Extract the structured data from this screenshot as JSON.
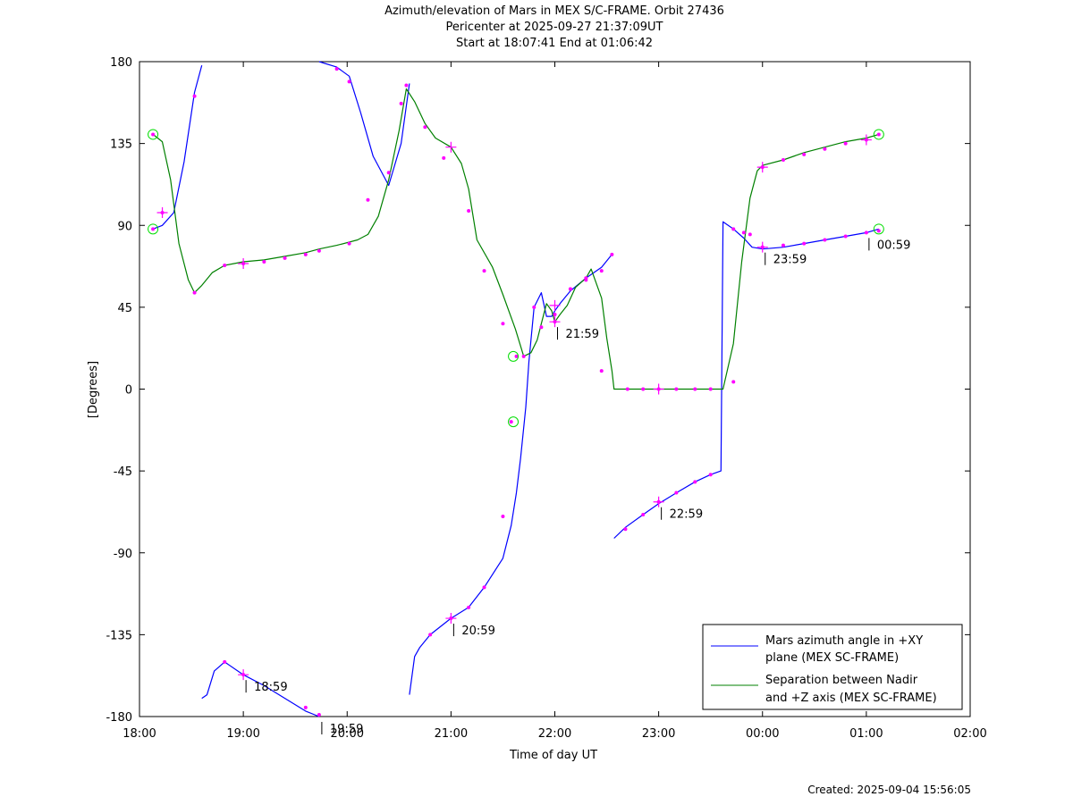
{
  "title_lines": [
    "Azimuth/elevation of Mars in MEX S/C-FRAME.  Orbit 27436",
    "Pericenter at 2025-09-27 21:37:09UT",
    "Start at 18:07:41 End at 01:06:42"
  ],
  "footer": "Created: 2025-09-04 15:56:05",
  "colors": {
    "azimuth": "#0000ff",
    "separation": "#008000",
    "marker": "#ff00ff",
    "circle": "#00dd00"
  },
  "chart_data": {
    "type": "line",
    "xlabel": "Time of day UT",
    "ylabel": "[Degrees]",
    "x_unit": "hours since 18:00 UT",
    "xlim": [
      0,
      8
    ],
    "ylim": [
      -180,
      180
    ],
    "xticks": [
      0,
      1,
      2,
      3,
      4,
      5,
      6,
      7,
      8
    ],
    "xtick_labels": [
      "18:00",
      "19:00",
      "20:00",
      "21:00",
      "22:00",
      "23:00",
      "00:00",
      "01:00",
      "02:00"
    ],
    "yticks": [
      180,
      135,
      90,
      45,
      0,
      -45,
      -90,
      -135,
      -180
    ],
    "grid": false,
    "legend_position": "bottom-right",
    "series": [
      {
        "name": "Mars azimuth angle in +XY plane (MEX SC-FRAME)",
        "segments": [
          [
            [
              0.13,
              88
            ],
            [
              0.22,
              90
            ],
            [
              0.33,
              97
            ],
            [
              0.43,
              125
            ],
            [
              0.53,
              163
            ],
            [
              0.6,
              178
            ]
          ],
          [
            [
              0.6,
              -170
            ],
            [
              0.65,
              -168
            ],
            [
              0.72,
              -155
            ],
            [
              0.82,
              -150
            ],
            [
              1.0,
              -157
            ],
            [
              1.2,
              -163
            ],
            [
              1.4,
              -170
            ],
            [
              1.6,
              -177
            ],
            [
              1.73,
              -180
            ]
          ],
          [
            [
              1.73,
              180
            ],
            [
              1.9,
              177
            ],
            [
              2.02,
              172
            ],
            [
              2.13,
              152
            ],
            [
              2.25,
              128
            ],
            [
              2.4,
              112
            ],
            [
              2.52,
              135
            ],
            [
              2.6,
              168
            ]
          ],
          [
            [
              2.6,
              -168
            ],
            [
              2.65,
              -147
            ],
            [
              2.7,
              -142
            ],
            [
              2.8,
              -135
            ],
            [
              3.0,
              -126
            ],
            [
              3.17,
              -120
            ],
            [
              3.32,
              -109
            ],
            [
              3.5,
              -93
            ],
            [
              3.58,
              -75
            ],
            [
              3.63,
              -57
            ],
            [
              3.67,
              -38
            ],
            [
              3.72,
              -10
            ],
            [
              3.75,
              15
            ],
            [
              3.8,
              45
            ],
            [
              3.87,
              53
            ],
            [
              3.92,
              40
            ],
            [
              3.97,
              40
            ],
            [
              4.0,
              43
            ],
            [
              4.05,
              47
            ],
            [
              4.15,
              54
            ],
            [
              4.3,
              61
            ],
            [
              4.45,
              67
            ],
            [
              4.55,
              74
            ]
          ],
          [
            [
              4.57,
              -82
            ],
            [
              4.68,
              -76
            ],
            [
              4.85,
              -69
            ],
            [
              5.0,
              -63
            ],
            [
              5.17,
              -57
            ],
            [
              5.35,
              -51
            ],
            [
              5.5,
              -47
            ],
            [
              5.6,
              -45
            ],
            [
              5.62,
              92
            ],
            [
              5.72,
              88
            ],
            [
              5.82,
              83
            ],
            [
              5.9,
              78
            ],
            [
              6.0,
              77
            ],
            [
              6.2,
              78
            ],
            [
              6.4,
              80
            ],
            [
              6.6,
              82
            ],
            [
              6.8,
              84
            ],
            [
              7.0,
              86
            ],
            [
              7.12,
              88
            ]
          ]
        ],
        "markers": [
          [
            0.13,
            88
          ],
          [
            0.22,
            97
          ],
          [
            0.53,
            161
          ],
          [
            0.82,
            -150
          ],
          [
            1.0,
            -157
          ],
          [
            1.6,
            -175
          ],
          [
            1.73,
            -179
          ],
          [
            1.9,
            176
          ],
          [
            2.02,
            169
          ],
          [
            2.4,
            119
          ],
          [
            2.52,
            157
          ],
          [
            2.8,
            -135
          ],
          [
            3.0,
            -126
          ],
          [
            3.17,
            -120
          ],
          [
            3.32,
            -109
          ],
          [
            3.5,
            -70
          ],
          [
            3.58,
            -18
          ],
          [
            3.63,
            18
          ],
          [
            3.8,
            45
          ],
          [
            3.87,
            34
          ],
          [
            4.0,
            37
          ],
          [
            4.15,
            55
          ],
          [
            4.3,
            61
          ],
          [
            4.45,
            65
          ],
          [
            4.55,
            74
          ],
          [
            4.68,
            -77
          ],
          [
            4.85,
            -69
          ],
          [
            5.0,
            -62
          ],
          [
            5.17,
            -57
          ],
          [
            5.35,
            -51
          ],
          [
            5.5,
            -47
          ],
          [
            5.72,
            88
          ],
          [
            5.82,
            86
          ],
          [
            6.0,
            78
          ],
          [
            6.2,
            79
          ],
          [
            6.4,
            80
          ],
          [
            6.6,
            82
          ],
          [
            6.8,
            84
          ],
          [
            7.0,
            86
          ],
          [
            7.12,
            87
          ]
        ]
      },
      {
        "name": "Separation between Nadir and +Z axis (MEX SC-FRAME)",
        "segments": [
          [
            [
              0.13,
              140
            ],
            [
              0.22,
              136
            ],
            [
              0.3,
              115
            ],
            [
              0.38,
              80
            ],
            [
              0.47,
              60
            ],
            [
              0.53,
              53
            ],
            [
              0.6,
              57
            ],
            [
              0.7,
              64
            ],
            [
              0.82,
              68
            ],
            [
              1.0,
              70
            ],
            [
              1.2,
              71
            ],
            [
              1.4,
              73
            ],
            [
              1.6,
              75
            ],
            [
              1.73,
              77
            ],
            [
              1.9,
              79
            ],
            [
              2.1,
              82
            ],
            [
              2.2,
              85
            ],
            [
              2.3,
              95
            ],
            [
              2.4,
              115
            ],
            [
              2.5,
              142
            ],
            [
              2.57,
              165
            ],
            [
              2.65,
              158
            ],
            [
              2.75,
              146
            ],
            [
              2.85,
              138
            ],
            [
              3.0,
              133
            ],
            [
              3.1,
              124
            ],
            [
              3.17,
              110
            ],
            [
              3.25,
              82
            ],
            [
              3.4,
              67
            ],
            [
              3.5,
              52
            ],
            [
              3.62,
              33
            ],
            [
              3.7,
              18
            ],
            [
              3.77,
              20
            ],
            [
              3.83,
              27
            ],
            [
              3.87,
              36
            ],
            [
              3.92,
              47
            ],
            [
              3.97,
              43
            ],
            [
              4.0,
              37
            ],
            [
              4.05,
              41
            ],
            [
              4.12,
              46
            ],
            [
              4.2,
              56
            ],
            [
              4.3,
              61
            ],
            [
              4.35,
              66
            ],
            [
              4.45,
              50
            ],
            [
              4.5,
              28
            ],
            [
              4.55,
              10
            ],
            [
              4.57,
              0
            ],
            [
              4.7,
              0
            ],
            [
              5.0,
              0
            ],
            [
              5.3,
              0
            ],
            [
              5.5,
              0
            ],
            [
              5.62,
              0
            ],
            [
              5.72,
              25
            ],
            [
              5.8,
              70
            ],
            [
              5.88,
              105
            ],
            [
              5.95,
              120
            ],
            [
              6.0,
              123
            ],
            [
              6.2,
              126
            ],
            [
              6.4,
              130
            ],
            [
              6.6,
              133
            ],
            [
              6.8,
              136
            ],
            [
              7.0,
              138
            ],
            [
              7.12,
              140
            ]
          ]
        ],
        "markers": [
          [
            0.13,
            140
          ],
          [
            0.53,
            53
          ],
          [
            0.82,
            68
          ],
          [
            1.0,
            69
          ],
          [
            1.2,
            70
          ],
          [
            1.4,
            72
          ],
          [
            1.6,
            74
          ],
          [
            1.73,
            76
          ],
          [
            2.02,
            80
          ],
          [
            2.2,
            104
          ],
          [
            2.57,
            167
          ],
          [
            2.75,
            144
          ],
          [
            2.93,
            127
          ],
          [
            3.17,
            98
          ],
          [
            3.32,
            65
          ],
          [
            3.5,
            36
          ],
          [
            3.7,
            18
          ],
          [
            4.0,
            41
          ],
          [
            4.15,
            55
          ],
          [
            4.3,
            60
          ],
          [
            4.45,
            10
          ],
          [
            4.7,
            0
          ],
          [
            4.85,
            0
          ],
          [
            5.0,
            0
          ],
          [
            5.17,
            0
          ],
          [
            5.35,
            0
          ],
          [
            5.5,
            0
          ],
          [
            5.72,
            4
          ],
          [
            5.88,
            85
          ],
          [
            6.0,
            122
          ],
          [
            6.2,
            126
          ],
          [
            6.4,
            129
          ],
          [
            6.6,
            132
          ],
          [
            6.8,
            135
          ],
          [
            7.0,
            137
          ],
          [
            7.12,
            140
          ]
        ]
      }
    ],
    "plus_markers": [
      [
        0.22,
        97
      ],
      [
        1.0,
        -157
      ],
      [
        1.0,
        69
      ],
      [
        3.0,
        -126
      ],
      [
        3.0,
        133
      ],
      [
        4.0,
        37
      ],
      [
        4.0,
        46
      ],
      [
        5.0,
        -62
      ],
      [
        5.0,
        0
      ],
      [
        6.0,
        78
      ],
      [
        6.0,
        122
      ],
      [
        7.0,
        137
      ]
    ],
    "circle_markers": [
      [
        0.13,
        140
      ],
      [
        0.13,
        88
      ],
      [
        3.6,
        18
      ],
      [
        3.6,
        -18
      ],
      [
        7.12,
        140
      ],
      [
        7.12,
        88
      ]
    ],
    "time_annotations": [
      {
        "x": 1.0,
        "y": -157,
        "label": "18:59"
      },
      {
        "x": 1.73,
        "y": -180,
        "label": "19:59"
      },
      {
        "x": 3.0,
        "y": -126,
        "label": "20:59"
      },
      {
        "x": 4.0,
        "y": 37,
        "label": "21:59"
      },
      {
        "x": 5.0,
        "y": -62,
        "label": "22:59"
      },
      {
        "x": 6.0,
        "y": 78,
        "label": "23:59"
      },
      {
        "x": 7.0,
        "y": 86,
        "label": "00:59"
      }
    ]
  }
}
